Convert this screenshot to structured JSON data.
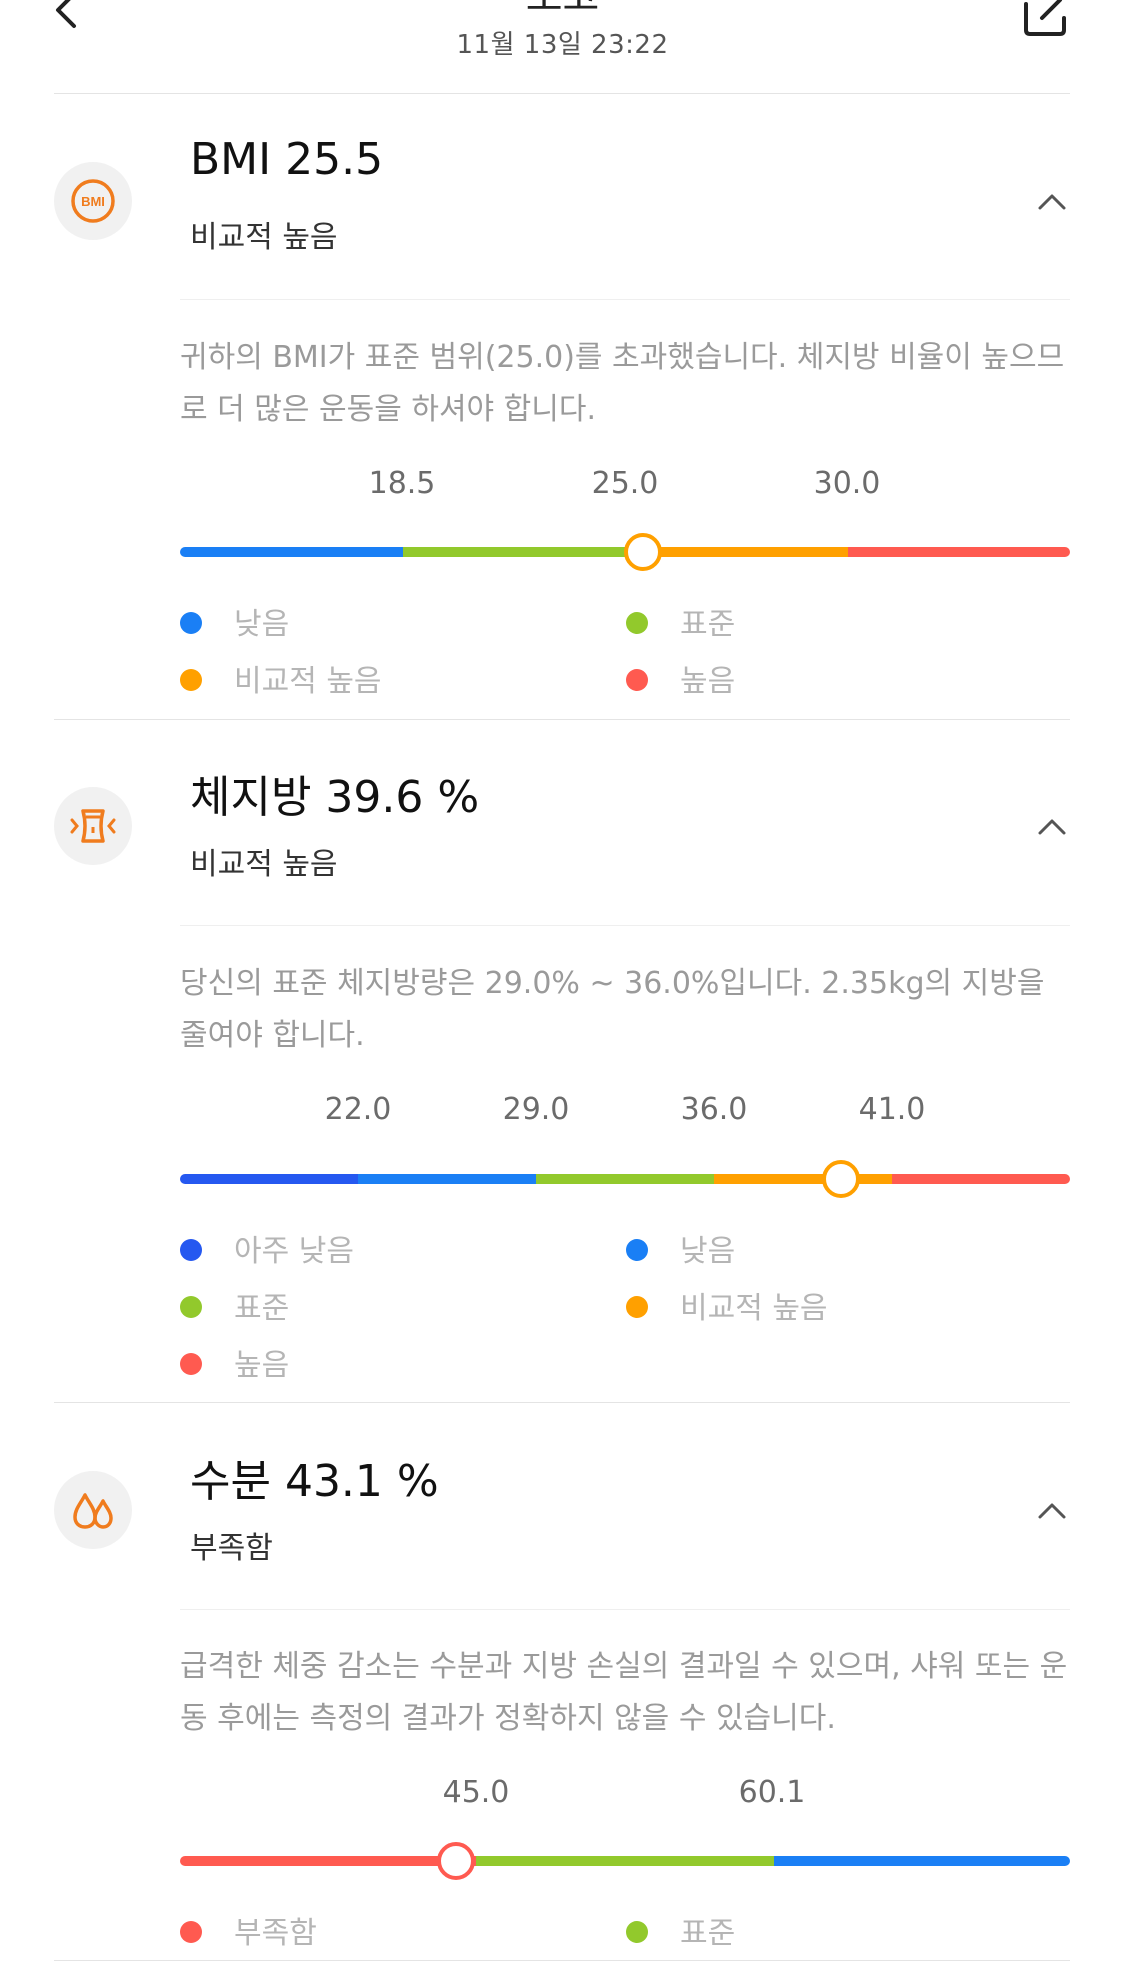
{
  "header": {
    "title": "보고",
    "subtitle": "11월 13일 23:22"
  },
  "sections": [
    {
      "title": "BMI 25.5",
      "status": "비교적 높음",
      "description": "귀하의 BMI가 표준 범위(25.0)를 초과했습니다. 체지방 비율이 높으므로 더 많은 운동을 하셔야 합니다.",
      "ticks": [
        "18.5",
        "25.0",
        "30.0"
      ],
      "marker_fraction": 0.52,
      "marker_color": "#ffa000",
      "segments": [
        {
          "color": "#1a7ff5"
        },
        {
          "color": "#92c92c"
        },
        {
          "color": "#ffa000"
        },
        {
          "color": "#ff5a50"
        }
      ],
      "legend": [
        {
          "label": "낮음",
          "color": "#1a7ff5"
        },
        {
          "label": "표준",
          "color": "#92c92c"
        },
        {
          "label": "비교적 높음",
          "color": "#ffa000"
        },
        {
          "label": "높음",
          "color": "#ff5a50"
        }
      ]
    },
    {
      "title": "체지방 39.6 %",
      "status": "비교적 높음",
      "description": "당신의 표준 체지방량은 29.0% ~ 36.0%입니다. 2.35kg의 지방을 줄여야 합니다.",
      "ticks": [
        "22.0",
        "29.0",
        "36.0",
        "41.0"
      ],
      "marker_fraction": 0.743,
      "marker_color": "#ffa000",
      "segments": [
        {
          "color": "#2558f0"
        },
        {
          "color": "#1a7ff5"
        },
        {
          "color": "#92c92c"
        },
        {
          "color": "#ffa000"
        },
        {
          "color": "#ff5a50"
        }
      ],
      "legend": [
        {
          "label": "아주 낮음",
          "color": "#2558f0"
        },
        {
          "label": "낮음",
          "color": "#1a7ff5"
        },
        {
          "label": "표준",
          "color": "#92c92c"
        },
        {
          "label": "비교적 높음",
          "color": "#ffa000"
        },
        {
          "label": "높음",
          "color": "#ff5a50"
        }
      ]
    },
    {
      "title": "수분 43.1 %",
      "status": "부족함",
      "description": "급격한 체중 감소는 수분과 지방 손실의 결과일 수 있으며, 샤워 또는 운동 후에는 측정의 결과가 정확하지 않을 수 있습니다.",
      "ticks": [
        "45.0",
        "60.1"
      ],
      "marker_fraction": 0.31,
      "marker_color": "#ff5a50",
      "segments": [
        {
          "color": "#ff5a50"
        },
        {
          "color": "#92c92c"
        },
        {
          "color": "#1a7ff5"
        }
      ],
      "legend": [
        {
          "label": "부족함",
          "color": "#ff5a50"
        },
        {
          "label": "표준",
          "color": "#92c92c"
        }
      ]
    }
  ],
  "icons": {
    "back": "chevron-left-icon",
    "share": "share-icon",
    "bmi": "bmi-icon",
    "body_fat": "waist-icon",
    "water": "water-drops-icon",
    "collapse": "chevron-up-icon"
  },
  "accent_color": "#f07c1e"
}
